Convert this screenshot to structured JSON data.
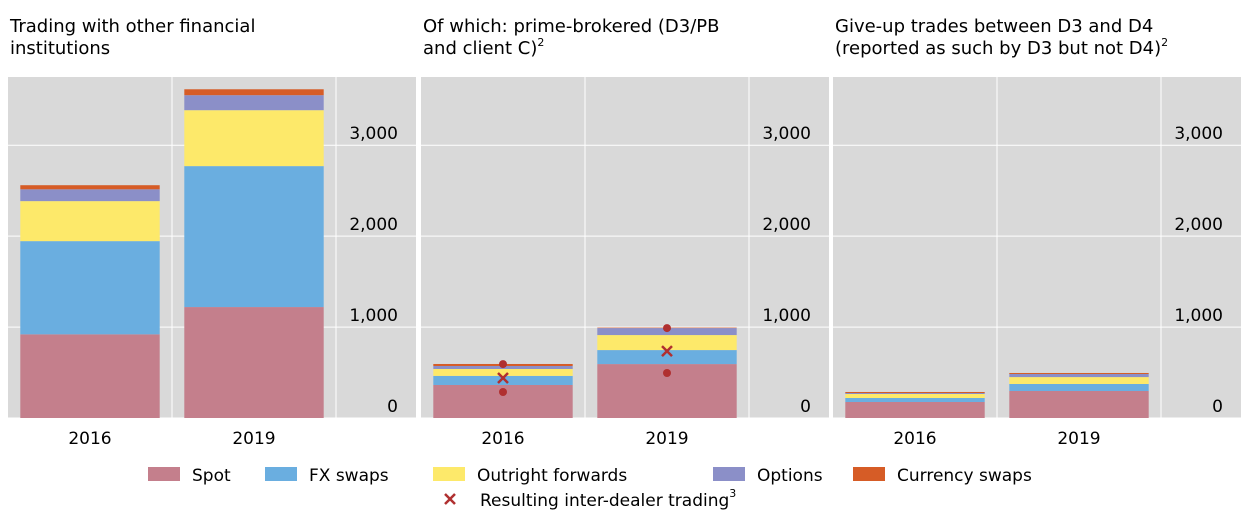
{
  "chart_data": [
    {
      "type": "bar",
      "stacked": true,
      "title_lines": [
        "Trading with other financial",
        "institutions"
      ],
      "categories": [
        "2016",
        "2019"
      ],
      "series": [
        {
          "values": [
            920,
            1220
          ]
        },
        {
          "values": [
            1025,
            1550
          ]
        },
        {
          "values": [
            440,
            615
          ]
        },
        {
          "values": [
            130,
            165
          ]
        },
        {
          "values": [
            45,
            65
          ]
        }
      ],
      "ylim": [
        0,
        3750
      ],
      "yticks": [
        0,
        {
          "value": 1000,
          "label": "1,000"
        },
        {
          "value": 2000,
          "label": "2,000"
        },
        {
          "value": 3000,
          "label": "3,000"
        }
      ],
      "grid": true
    },
    {
      "type": "bar",
      "stacked": true,
      "title_lines": [
        "Of which: prime-brokered (D3/PB",
        "and client C)"
      ],
      "title_note": "2",
      "categories": [
        "2016",
        "2019"
      ],
      "series": [
        {
          "values": [
            363,
            593
          ]
        },
        {
          "values": [
            100,
            154
          ]
        },
        {
          "values": [
            76,
            165
          ]
        },
        {
          "values": [
            33,
            77
          ]
        },
        {
          "values": [
            22,
            5
          ]
        }
      ],
      "markers": {
        "values": [
          440,
          736
        ],
        "low": [
          286,
          495
        ],
        "high": [
          593,
          989
        ]
      },
      "ylim": [
        0,
        3750
      ],
      "yticks": [
        0,
        {
          "value": 1000,
          "label": "1,000"
        },
        {
          "value": 2000,
          "label": "2,000"
        },
        {
          "value": 3000,
          "label": "3,000"
        }
      ],
      "grid": true
    },
    {
      "type": "bar",
      "stacked": true,
      "title_lines": [
        "Give-up trades between D3 and D4",
        "(reported as such by D3 but not D4)"
      ],
      "title_note": "2",
      "categories": [
        "2016",
        "2019"
      ],
      "series": [
        {
          "values": [
            176,
            297
          ]
        },
        {
          "values": [
            44,
            77
          ]
        },
        {
          "values": [
            44,
            76
          ]
        },
        {
          "values": [
            11,
            34
          ]
        },
        {
          "values": [
            11,
            11
          ]
        }
      ],
      "ylim": [
        0,
        3750
      ],
      "yticks": [
        0,
        {
          "value": 1000,
          "label": "1,000"
        },
        {
          "value": 2000,
          "label": "2,000"
        },
        {
          "value": 3000,
          "label": "3,000"
        }
      ],
      "grid": true
    }
  ],
  "legend": {
    "series": [
      {
        "name": "Spot",
        "color": "#c47f8c"
      },
      {
        "name": "FX swaps",
        "color": "#6aaee0"
      },
      {
        "name": "Outright forwards",
        "color": "#fde96a"
      },
      {
        "name": "Options",
        "color": "#8b8fc8"
      },
      {
        "name": "Currency swaps",
        "color": "#d65c26"
      }
    ],
    "marker": {
      "name": "Resulting inter-dealer trading",
      "note": "3",
      "color": "#b03030"
    }
  }
}
